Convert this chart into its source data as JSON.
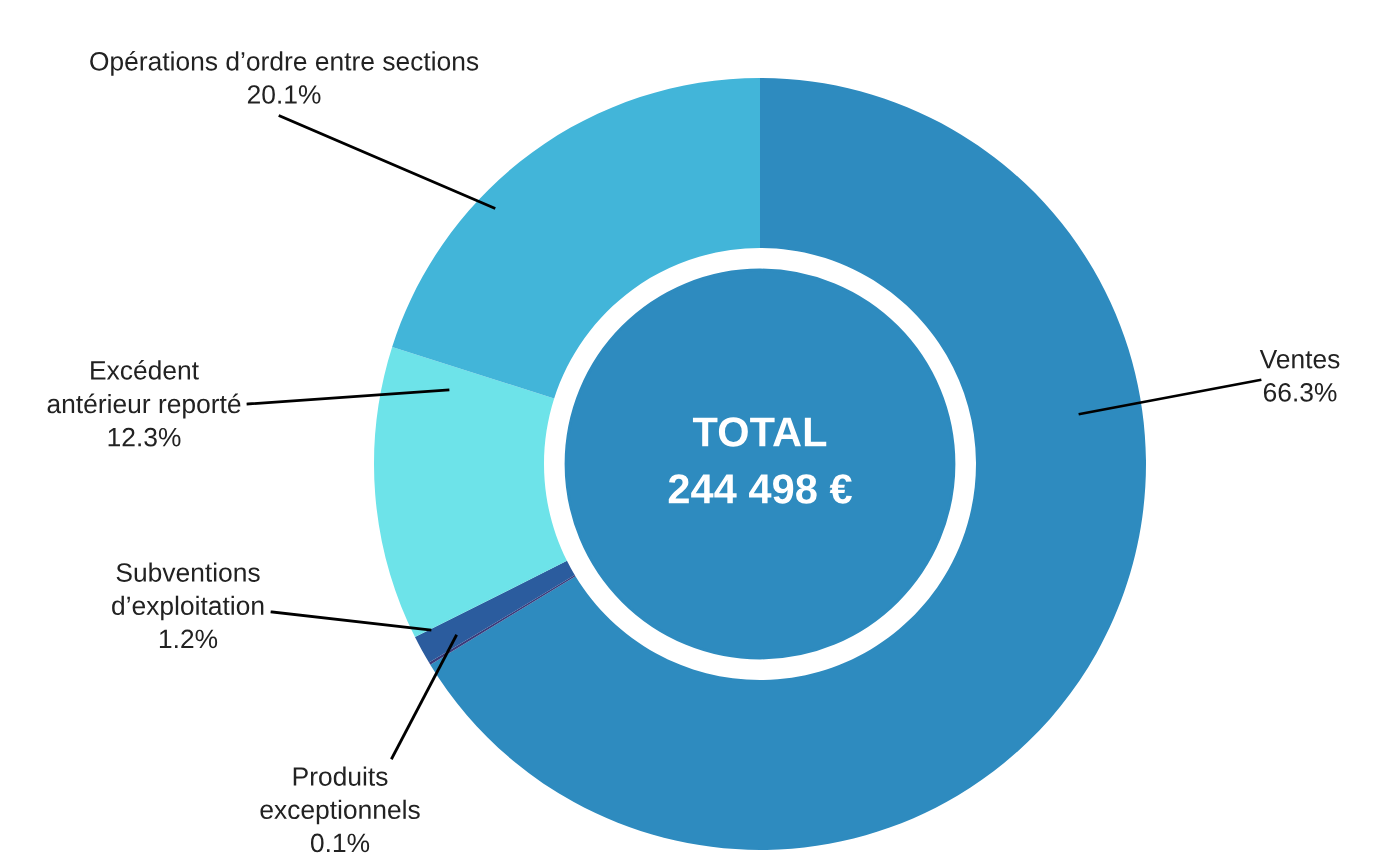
{
  "chart_data": {
    "type": "donut",
    "categories": [
      "Ventes",
      "Produits exceptionnels",
      "Subventions d’exploitation",
      "Excédent antérieur reporté",
      "Opérations d’ordre entre sections"
    ],
    "values": [
      66.3,
      0.1,
      1.2,
      12.3,
      20.1
    ],
    "value_labels": [
      "66.3%",
      "0.1%",
      "1.2%",
      "12.3%",
      "20.1%"
    ],
    "colors": [
      "#2e8bbf",
      "#3b3a7a",
      "#2b5c9e",
      "#6de3e9",
      "#42b5d9"
    ],
    "annotations": [
      "TOTAL\n244 498 €"
    ],
    "legend": false
  }
}
